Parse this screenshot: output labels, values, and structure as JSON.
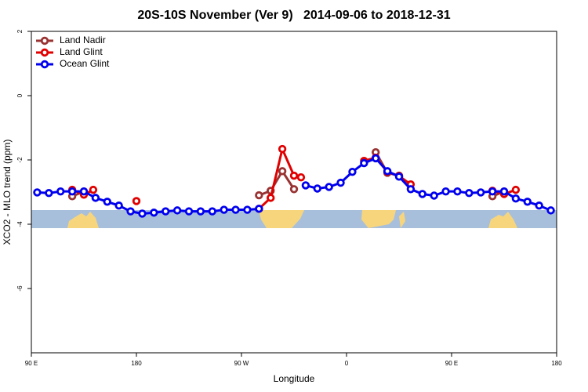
{
  "chart_data": {
    "type": "line",
    "title": "20S-10S November (Ver 9)   2014-09-06 to 2018-12-31",
    "x_label": "Longitude",
    "y_label": "XCO2 - MLO trend (ppm)",
    "xlim": [
      90,
      540
    ],
    "ylim": [
      -8,
      2
    ],
    "xticks": [
      {
        "value": 90,
        "label": "90 E"
      },
      {
        "value": 180,
        "label": "180"
      },
      {
        "value": 270,
        "label": "90 W"
      },
      {
        "value": 360,
        "label": "0"
      },
      {
        "value": 450,
        "label": "90 E"
      },
      {
        "value": 540,
        "label": "180"
      }
    ],
    "yticks": [
      -6,
      -4,
      -2,
      0,
      2
    ],
    "legend": "top-left",
    "series": [
      {
        "name": "Land Nadir",
        "color": "#993333",
        "x": [
          125,
          135,
          205,
          285,
          295,
          305,
          315,
          345,
          385,
          395,
          405,
          445,
          485,
          495
        ],
        "values": [
          -3.13,
          -2.98,
          null,
          -3.1,
          -2.96,
          -2.35,
          -2.91,
          null,
          -1.76,
          -2.4,
          -2.49,
          null,
          -3.13,
          -2.98
        ]
      },
      {
        "name": "Land Glint",
        "color": "#e00000",
        "x": [
          125,
          135,
          143,
          155,
          180,
          205,
          285,
          295,
          305,
          315,
          321,
          345,
          375,
          385,
          395,
          405,
          415,
          445,
          485,
          495,
          505
        ],
        "values": [
          -2.93,
          -3.08,
          -2.93,
          null,
          -3.28,
          null,
          -3.52,
          -3.18,
          -1.66,
          -2.49,
          -2.54,
          null,
          -2.03,
          -1.93,
          -2.37,
          -2.5,
          -2.76,
          null,
          -2.96,
          -3.06,
          -2.93
        ]
      },
      {
        "name": "Ocean Glint",
        "color": "#0000ee",
        "x": [
          95,
          105,
          115,
          125,
          135,
          145,
          155,
          165,
          175,
          185,
          195,
          205,
          215,
          225,
          235,
          245,
          255,
          265,
          275,
          285,
          295,
          305,
          315,
          325,
          335,
          345,
          355,
          365,
          375,
          385,
          395,
          405,
          415,
          425,
          435,
          445,
          455,
          465,
          475,
          485,
          495,
          505,
          515,
          525,
          535
        ],
        "values": [
          -3.01,
          -3.03,
          -2.98,
          -2.98,
          -2.98,
          -3.18,
          -3.3,
          -3.42,
          -3.6,
          -3.67,
          -3.64,
          -3.6,
          -3.57,
          -3.6,
          -3.6,
          -3.6,
          -3.55,
          -3.55,
          -3.55,
          -3.52,
          null,
          null,
          null,
          -2.79,
          -2.89,
          -2.84,
          -2.71,
          -2.37,
          -2.1,
          -1.95,
          -2.35,
          -2.52,
          -2.91,
          -3.06,
          -3.11,
          -2.98,
          -2.98,
          -3.03,
          -3.01,
          -2.98,
          -2.98,
          -3.2,
          -3.3,
          -3.42,
          -3.57
        ]
      }
    ]
  }
}
